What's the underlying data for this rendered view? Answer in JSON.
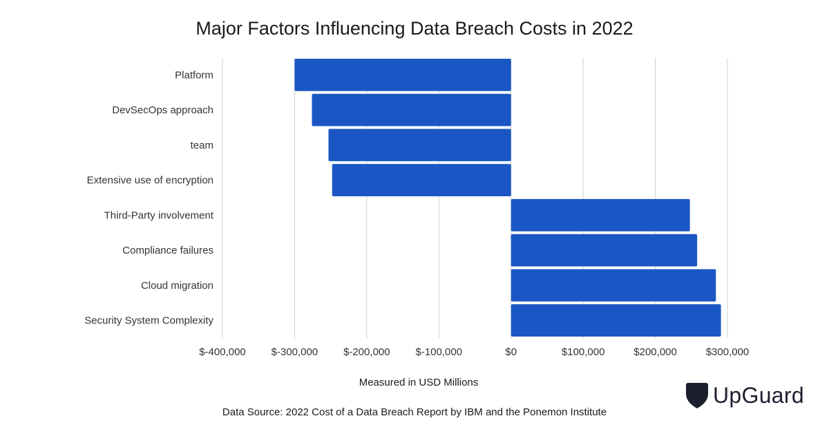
{
  "colors": {
    "bar": "#1a57c4",
    "grid": "#d0d0d0",
    "text": "#333333"
  },
  "brand": {
    "name": "UpGuard",
    "icon": "upguard-shield-icon"
  },
  "footer": {
    "source": "Data Source: 2022 Cost of a Data Breach Report by IBM and the Ponemon Institute"
  },
  "chart_data": {
    "type": "bar",
    "orientation": "horizontal",
    "title": "Major Factors Influencing Data Breach Costs in 2022",
    "xlabel": "Measured in USD Millions",
    "ylabel": "",
    "categories": [
      "Platform",
      "DevSecOps approach",
      "team",
      "Extensive use of encryption",
      "Third-Party involvement",
      "Compliance failures",
      "Cloud migration",
      "Security System Complexity"
    ],
    "values": [
      -300000,
      -276000,
      -253000,
      -248000,
      248000,
      258000,
      284000,
      291000
    ],
    "xlim": [
      -400000,
      300000
    ],
    "ticks": [
      -400000,
      -300000,
      -200000,
      -100000,
      0,
      100000,
      200000,
      300000
    ],
    "tick_labels": [
      "$-400,000",
      "$-300,000",
      "$-200,000",
      "$-100,000",
      "$0",
      "$100,000",
      "$200,000",
      "$300,000"
    ],
    "grid": true,
    "legend": "none"
  }
}
